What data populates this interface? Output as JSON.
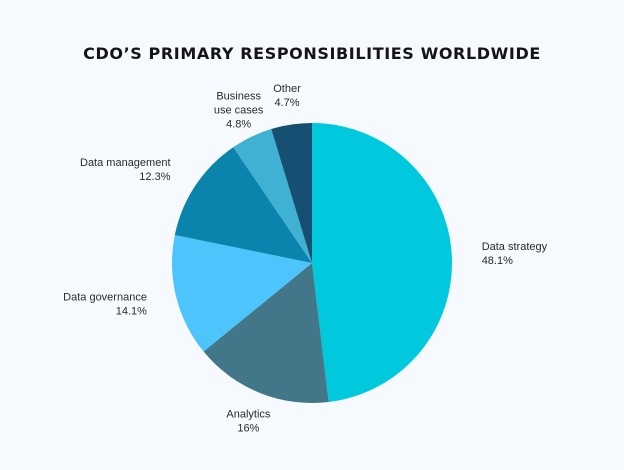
{
  "chart_data": {
    "type": "pie",
    "title": "CDO’S PRIMARY RESPONSIBILITIES WORLDWIDE",
    "start_angle_deg": 0,
    "direction": "clockwise",
    "slices": [
      {
        "name": "Data strategy",
        "label_lines": [
          "Data strategy"
        ],
        "value": 48.1,
        "value_label": "48.1%",
        "color": "#00c9de"
      },
      {
        "name": "Analytics",
        "label_lines": [
          "Analytics"
        ],
        "value": 16,
        "value_label": "16%",
        "color": "#42778a"
      },
      {
        "name": "Data governance",
        "label_lines": [
          "Data governance"
        ],
        "value": 14.1,
        "value_label": "14.1%",
        "color": "#4dc5fc"
      },
      {
        "name": "Data management",
        "label_lines": [
          "Data management"
        ],
        "value": 12.3,
        "value_label": "12.3%",
        "color": "#0a84ad"
      },
      {
        "name": "Business use cases",
        "label_lines": [
          "Business",
          "use cases"
        ],
        "value": 4.8,
        "value_label": "4.8%",
        "color": "#3fb1d3"
      },
      {
        "name": "Other",
        "label_lines": [
          "Other"
        ],
        "value": 4.7,
        "value_label": "4.7%",
        "color": "#154f72"
      }
    ]
  }
}
